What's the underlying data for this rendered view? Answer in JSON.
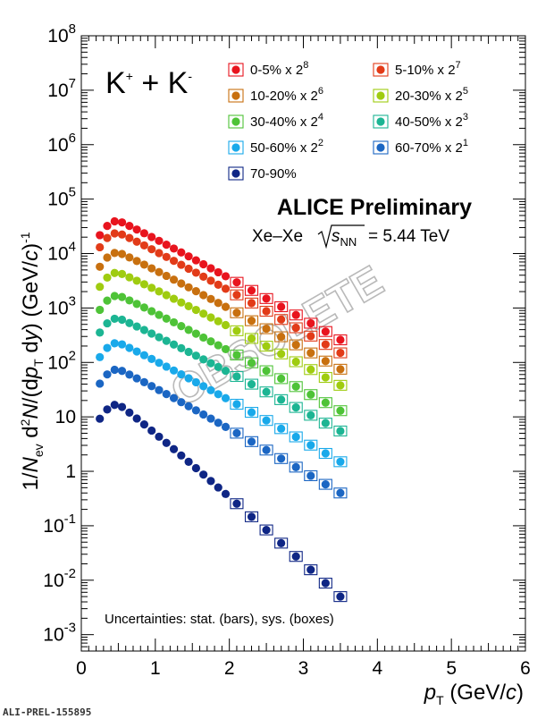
{
  "page": {
    "footer_id": "ALI-PREL-155895",
    "particle_label": "K",
    "experiment": "ALICE Preliminary",
    "system": "Xe–Xe",
    "energy_value": "= 5.44 TeV",
    "uncertainties": "Uncertainties: stat. (bars), sys. (boxes)",
    "watermark": "OBSOLETE"
  },
  "chart_data": {
    "type": "scatter",
    "x_axis": {
      "label": "p",
      "label_sub": "T",
      "unit": "(GeV/c)",
      "range": [
        0,
        6
      ],
      "ticks": [
        "0",
        "1",
        "2",
        "3",
        "4",
        "5",
        "6"
      ]
    },
    "y_axis": {
      "label": "1/N_ev d²N/(dp_T dy) (GeV/c)⁻¹",
      "scale": "log",
      "range": [
        0.0005,
        100000000
      ],
      "ticks": [
        "10⁻³",
        "10⁻²",
        "10⁻¹",
        "1",
        "10",
        "10²",
        "10³",
        "10⁴",
        "10⁵",
        "10⁶",
        "10⁷",
        "10⁸"
      ]
    },
    "legend_position": "top",
    "grid": false,
    "series": [
      {
        "name": "0-5% x 2",
        "exp": "8",
        "color": "#e8141e",
        "peak": 40000,
        "last": 260
      },
      {
        "name": "5-10% x 2",
        "exp": "7",
        "color": "#e23b18",
        "peak": 24000,
        "last": 150
      },
      {
        "name": "10-20% x 2",
        "exp": "6",
        "color": "#c8700f",
        "peak": 10500,
        "last": 75
      },
      {
        "name": "20-30% x 2",
        "exp": "5",
        "color": "#9fcc10",
        "peak": 4500,
        "last": 38
      },
      {
        "name": "30-40% x 2",
        "exp": "4",
        "color": "#4ec337",
        "peak": 1700,
        "last": 13
      },
      {
        "name": "40-50% x 2",
        "exp": "3",
        "color": "#1cb593",
        "peak": 650,
        "last": 5.5
      },
      {
        "name": "50-60% x 2",
        "exp": "2",
        "color": "#19a9ea",
        "peak": 230,
        "last": 1.5
      },
      {
        "name": "60-70% x 2",
        "exp": "1",
        "color": "#1b66c3",
        "peak": 75,
        "last": 0.4
      },
      {
        "name": "70-90%",
        "exp": "",
        "color": "#0f2685",
        "peak": 17,
        "last": 0.005
      }
    ],
    "pt_points": [
      0.25,
      0.35,
      0.45,
      0.55,
      0.65,
      0.75,
      0.85,
      0.95,
      1.05,
      1.15,
      1.25,
      1.35,
      1.45,
      1.55,
      1.65,
      1.75,
      1.85,
      1.95,
      2.1,
      2.3,
      2.5,
      2.7,
      2.9,
      3.1,
      3.3,
      3.5
    ],
    "peak_pt": 0.5,
    "systematic_box_from_pt": 2.05
  }
}
